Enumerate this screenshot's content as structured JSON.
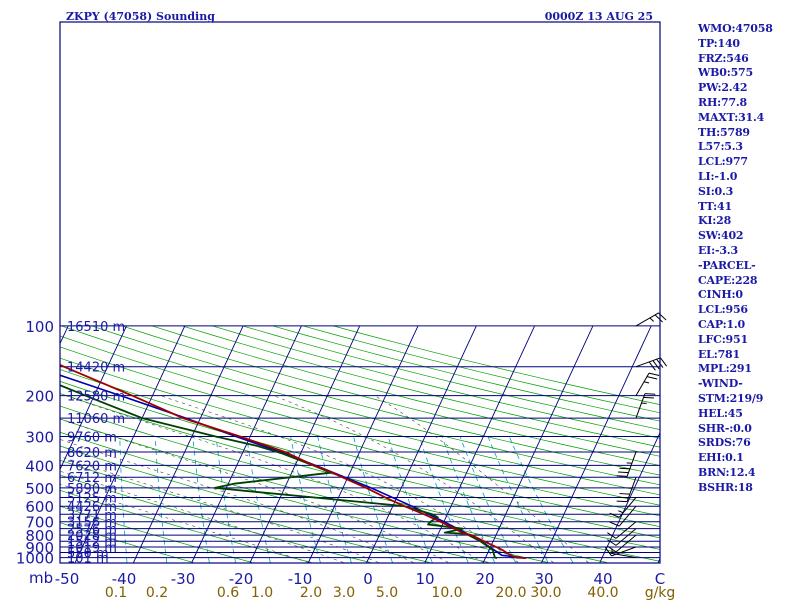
{
  "header": {
    "station": "ZKPY (47058) Sounding",
    "time": "0000Z 13 AUG 25"
  },
  "indices": [
    "WMO:47058",
    "TP:140",
    "FRZ:546",
    "WB0:575",
    "PW:2.42",
    "RH:77.8",
    "MAXT:31.4",
    "TH:5789",
    "L57:5.3",
    "LCL:977",
    "LI:-1.0",
    "SI:0.3",
    "TT:41",
    "KI:28",
    "SW:402",
    "EI:-3.3",
    "-PARCEL-",
    "CAPE:228",
    "CINH:0",
    "LCL:956",
    "CAP:1.0",
    "LFC:951",
    "EL:781",
    "MPL:291",
    "-WIND-",
    "STM:219/9",
    "HEL:45",
    "SHR-:0.0",
    "SRDS:76",
    "EHI:0.1",
    "BRN:12.4",
    "BSHR:18"
  ],
  "colors": {
    "frame": "#000080",
    "temperature": "#a00000",
    "dewpoint": "#004000",
    "parcel": "#0000b0",
    "dry_adiabat": "#00a000",
    "moist_adiabat": "#000080",
    "mixing_ratio": "#00a0c0",
    "label_blue": "#1a1aa6",
    "label_mixing": "#806000"
  },
  "chart_data": {
    "type": "skew-t",
    "y_label": "mb",
    "x_unit": "C",
    "mixing_unit": "g/kg",
    "pressure_ticks": [
      100,
      200,
      300,
      400,
      500,
      600,
      700,
      800,
      900,
      1000
    ],
    "temp_ticks": [
      "-50",
      "-40",
      "-30",
      "-20",
      "-10",
      "0",
      "10",
      "20",
      "30",
      "40",
      "C"
    ],
    "mixing_ratio_labels": [
      "0.1",
      "0.2",
      "0.6",
      "1.0",
      "2.0",
      "3.0",
      "5.0",
      "10.0",
      "20.0",
      "30.0",
      "40.0",
      "g/kg"
    ],
    "height_labels": [
      "16510 m",
      "14420 m",
      "12580 m",
      "11060 m",
      "9760 m",
      "8620 m",
      "7620 m",
      "6712 m",
      "5890 m",
      "5125 m",
      "4426 m",
      "3771 m",
      "3156 m",
      "2576 m",
      "2028 m",
      "1512 m",
      "1019 m",
      "550 m",
      "101 m"
    ],
    "height_pressures": [
      100,
      150,
      200,
      250,
      300,
      350,
      400,
      450,
      500,
      550,
      600,
      650,
      700,
      750,
      800,
      850,
      900,
      950,
      1000
    ],
    "temperature": [
      {
        "p": 1005,
        "t": 27.0
      },
      {
        "p": 1000,
        "t": 25.2
      },
      {
        "p": 970,
        "t": 23.8
      },
      {
        "p": 925,
        "t": 22.2
      },
      {
        "p": 850,
        "t": 18.4
      },
      {
        "p": 800,
        "t": 15.8
      },
      {
        "p": 780,
        "t": 14.0
      },
      {
        "p": 700,
        "t": 9.4
      },
      {
        "p": 650,
        "t": 6.0
      },
      {
        "p": 600,
        "t": 2.0
      },
      {
        "p": 550,
        "t": -2.0
      },
      {
        "p": 500,
        "t": -6.0
      },
      {
        "p": 450,
        "t": -11.0
      },
      {
        "p": 430,
        "t": -13.0
      },
      {
        "p": 400,
        "t": -16.8
      },
      {
        "p": 350,
        "t": -22.8
      },
      {
        "p": 300,
        "t": -31.8
      },
      {
        "p": 250,
        "t": -43.0
      },
      {
        "p": 200,
        "t": -53.5
      },
      {
        "p": 150,
        "t": -67.5
      },
      {
        "p": 140,
        "t": -70.5
      },
      {
        "p": 100,
        "t": -72.5
      }
    ],
    "dewpoint": [
      {
        "p": 1005,
        "t": 22.0
      },
      {
        "p": 1000,
        "t": 21.6
      },
      {
        "p": 925,
        "t": 20.6
      },
      {
        "p": 850,
        "t": 17.8
      },
      {
        "p": 790,
        "t": 14.8
      },
      {
        "p": 780,
        "t": 11.0
      },
      {
        "p": 750,
        "t": 13.8
      },
      {
        "p": 720,
        "t": 7.5
      },
      {
        "p": 695,
        "t": 7.8
      },
      {
        "p": 670,
        "t": 8.6
      },
      {
        "p": 650,
        "t": 7.4
      },
      {
        "p": 600,
        "t": 2.0
      },
      {
        "p": 500,
        "t": -32.0
      },
      {
        "p": 480,
        "t": -29.0
      },
      {
        "p": 430,
        "t": -13.3
      },
      {
        "p": 400,
        "t": -16.9
      },
      {
        "p": 355,
        "t": -23.2
      },
      {
        "p": 330,
        "t": -28.0
      },
      {
        "p": 300,
        "t": -36.0
      },
      {
        "p": 250,
        "t": -50.0
      },
      {
        "p": 210,
        "t": -59.0
      },
      {
        "p": 200,
        "t": -61.5
      },
      {
        "p": 150,
        "t": -76.0
      },
      {
        "p": 140,
        "t": -77.5
      },
      {
        "p": 100,
        "t": -77.0
      }
    ],
    "parcel": [
      {
        "p": 1005,
        "t": 27.0
      },
      {
        "p": 977,
        "t": 22.6
      },
      {
        "p": 925,
        "t": 20.8
      },
      {
        "p": 850,
        "t": 17.9
      },
      {
        "p": 800,
        "t": 15.5
      },
      {
        "p": 700,
        "t": 10.0
      },
      {
        "p": 600,
        "t": 3.3
      },
      {
        "p": 500,
        "t": -5.2
      },
      {
        "p": 400,
        "t": -16.5
      },
      {
        "p": 350,
        "t": -23.6
      },
      {
        "p": 300,
        "t": -32.5
      },
      {
        "p": 250,
        "t": -42.5
      },
      {
        "p": 200,
        "t": -55.5
      },
      {
        "p": 150,
        "t": -72.5
      },
      {
        "p": 100,
        "t": -88.0
      }
    ],
    "wind": [
      {
        "p": 1000,
        "dir": 280,
        "speed": 5
      },
      {
        "p": 900,
        "dir": 250,
        "speed": 10
      },
      {
        "p": 800,
        "dir": 230,
        "speed": 10
      },
      {
        "p": 750,
        "dir": 230,
        "speed": 10
      },
      {
        "p": 700,
        "dir": 230,
        "speed": 10
      },
      {
        "p": 600,
        "dir": 220,
        "speed": 10
      },
      {
        "p": 550,
        "dir": 220,
        "speed": 15
      },
      {
        "p": 450,
        "dir": 200,
        "speed": 30
      },
      {
        "p": 350,
        "dir": 200,
        "speed": 35
      },
      {
        "p": 250,
        "dir": 20,
        "speed": 25
      },
      {
        "p": 200,
        "dir": 30,
        "speed": 25
      },
      {
        "p": 150,
        "dir": 70,
        "speed": 40
      },
      {
        "p": 100,
        "dir": 60,
        "speed": 25
      }
    ]
  }
}
